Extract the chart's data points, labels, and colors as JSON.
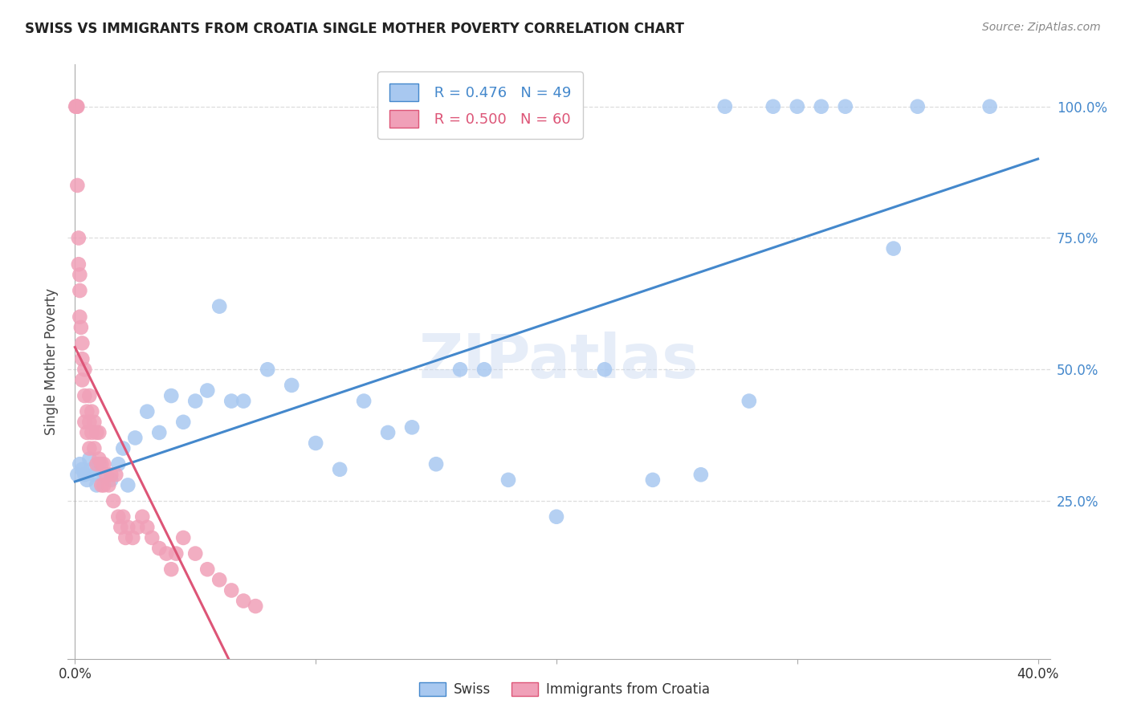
{
  "title": "SWISS VS IMMIGRANTS FROM CROATIA SINGLE MOTHER POVERTY CORRELATION CHART",
  "source": "Source: ZipAtlas.com",
  "ylabel": "Single Mother Poverty",
  "legend_label_blue": "Swiss",
  "legend_label_pink": "Immigrants from Croatia",
  "R_blue": 0.476,
  "N_blue": 49,
  "R_pink": 0.5,
  "N_pink": 60,
  "blue_color": "#A8C8F0",
  "pink_color": "#F0A0B8",
  "blue_line_color": "#4488CC",
  "pink_line_color": "#DD5577",
  "background_color": "#ffffff",
  "watermark": "ZIPatlas",
  "swiss_x": [
    0.001,
    0.002,
    0.003,
    0.004,
    0.005,
    0.006,
    0.007,
    0.008,
    0.009,
    0.01,
    0.012,
    0.015,
    0.018,
    0.02,
    0.022,
    0.025,
    0.03,
    0.035,
    0.04,
    0.045,
    0.05,
    0.055,
    0.06,
    0.065,
    0.07,
    0.08,
    0.09,
    0.1,
    0.11,
    0.12,
    0.13,
    0.14,
    0.15,
    0.16,
    0.17,
    0.18,
    0.2,
    0.22,
    0.24,
    0.26,
    0.28,
    0.3,
    0.32,
    0.34,
    0.27,
    0.29,
    0.31,
    0.35,
    0.38
  ],
  "swiss_y": [
    0.3,
    0.32,
    0.31,
    0.3,
    0.29,
    0.33,
    0.31,
    0.3,
    0.28,
    0.32,
    0.3,
    0.29,
    0.32,
    0.35,
    0.28,
    0.37,
    0.42,
    0.38,
    0.45,
    0.4,
    0.44,
    0.46,
    0.62,
    0.44,
    0.44,
    0.5,
    0.47,
    0.36,
    0.31,
    0.44,
    0.38,
    0.39,
    0.32,
    0.5,
    0.5,
    0.29,
    0.22,
    0.5,
    0.29,
    0.3,
    0.44,
    1.0,
    1.0,
    0.73,
    1.0,
    1.0,
    1.0,
    1.0,
    1.0
  ],
  "croatia_x": [
    0.0003,
    0.0005,
    0.0008,
    0.001,
    0.001,
    0.0015,
    0.0015,
    0.002,
    0.002,
    0.002,
    0.0025,
    0.003,
    0.003,
    0.003,
    0.004,
    0.004,
    0.004,
    0.005,
    0.005,
    0.006,
    0.006,
    0.006,
    0.007,
    0.007,
    0.008,
    0.008,
    0.009,
    0.009,
    0.01,
    0.01,
    0.011,
    0.011,
    0.012,
    0.012,
    0.013,
    0.014,
    0.015,
    0.016,
    0.017,
    0.018,
    0.019,
    0.02,
    0.021,
    0.022,
    0.024,
    0.026,
    0.028,
    0.03,
    0.032,
    0.035,
    0.038,
    0.04,
    0.042,
    0.045,
    0.05,
    0.055,
    0.06,
    0.065,
    0.07,
    0.075
  ],
  "croatia_y": [
    1.0,
    1.0,
    1.0,
    1.0,
    0.85,
    0.75,
    0.7,
    0.68,
    0.65,
    0.6,
    0.58,
    0.55,
    0.52,
    0.48,
    0.5,
    0.45,
    0.4,
    0.42,
    0.38,
    0.45,
    0.4,
    0.35,
    0.42,
    0.38,
    0.4,
    0.35,
    0.38,
    0.32,
    0.38,
    0.33,
    0.32,
    0.28,
    0.32,
    0.28,
    0.3,
    0.28,
    0.3,
    0.25,
    0.3,
    0.22,
    0.2,
    0.22,
    0.18,
    0.2,
    0.18,
    0.2,
    0.22,
    0.2,
    0.18,
    0.16,
    0.15,
    0.12,
    0.15,
    0.18,
    0.15,
    0.12,
    0.1,
    0.08,
    0.06,
    0.05
  ],
  "xlim": [
    -0.003,
    0.405
  ],
  "ylim": [
    -0.05,
    1.08
  ],
  "x_ticks": [
    0.0,
    0.1,
    0.2,
    0.3,
    0.4
  ],
  "x_tick_labels": [
    "0.0%",
    "",
    "",
    "",
    "40.0%"
  ],
  "y_ticks": [
    0.25,
    0.5,
    0.75,
    1.0
  ],
  "y_tick_labels": [
    "25.0%",
    "50.0%",
    "75.0%",
    "100.0%"
  ],
  "grid_color": "#dddddd",
  "spine_color": "#aaaaaa"
}
